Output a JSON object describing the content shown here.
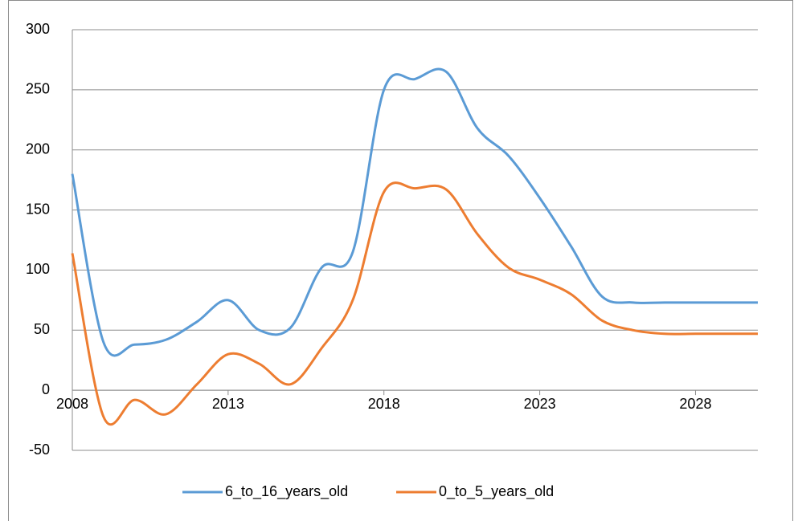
{
  "chart_data": {
    "type": "line",
    "x": [
      2008,
      2009,
      2010,
      2011,
      2012,
      2013,
      2014,
      2015,
      2016,
      2017,
      2018,
      2019,
      2020,
      2021,
      2022,
      2023,
      2024,
      2025,
      2026,
      2027,
      2028,
      2029,
      2030
    ],
    "series": [
      {
        "name": "6_to_16_years_old",
        "color": "#5b9bd5",
        "values": [
          180,
          40,
          38,
          42,
          57,
          75,
          50,
          52,
          102,
          115,
          250,
          259,
          265,
          218,
          195,
          160,
          120,
          78,
          73,
          73,
          73,
          73,
          73
        ]
      },
      {
        "name": "0_to_5_years_old",
        "color": "#ed7d31",
        "values": [
          114,
          -22,
          -8,
          -20,
          5,
          30,
          22,
          5,
          35,
          75,
          165,
          168,
          167,
          130,
          102,
          92,
          80,
          58,
          50,
          47,
          47,
          47,
          47
        ]
      }
    ],
    "xlim": [
      2008,
      2030
    ],
    "xticks": [
      2008,
      2013,
      2018,
      2023,
      2028
    ],
    "ylim": [
      -50,
      300
    ],
    "yticks": [
      -50,
      0,
      50,
      100,
      150,
      200,
      250,
      300
    ],
    "grid": true,
    "legend": "bottom"
  }
}
